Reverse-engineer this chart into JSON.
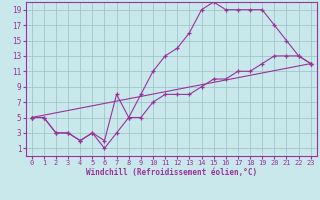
{
  "xlabel": "Windchill (Refroidissement éolien,°C)",
  "line1_x": [
    0,
    1,
    2,
    3,
    4,
    5,
    6,
    7,
    8,
    9,
    10,
    11,
    12,
    13,
    14,
    15,
    16,
    17,
    18,
    19,
    20,
    21,
    22,
    23
  ],
  "line1_y": [
    5,
    5,
    3,
    3,
    2,
    3,
    2,
    8,
    5,
    8,
    11,
    13,
    14,
    16,
    19,
    20,
    19,
    19,
    19,
    19,
    17,
    15,
    13,
    12
  ],
  "line2_x": [
    0,
    1,
    2,
    3,
    4,
    5,
    6,
    7,
    8,
    9,
    10,
    11,
    12,
    13,
    14,
    15,
    16,
    17,
    18,
    19,
    20,
    21,
    22,
    23
  ],
  "line2_y": [
    5,
    5,
    3,
    3,
    2,
    3,
    1,
    3,
    5,
    5,
    7,
    8,
    8,
    8,
    9,
    10,
    10,
    11,
    11,
    12,
    13,
    13,
    13,
    12
  ],
  "line3_x": [
    0,
    23
  ],
  "line3_y": [
    5,
    12
  ],
  "color": "#993399",
  "bg_color": "#c8e8ec",
  "grid_color": "#9bbfc4",
  "xlim": [
    -0.5,
    23.5
  ],
  "ylim": [
    0,
    20
  ],
  "xticks": [
    0,
    1,
    2,
    3,
    4,
    5,
    6,
    7,
    8,
    9,
    10,
    11,
    12,
    13,
    14,
    15,
    16,
    17,
    18,
    19,
    20,
    21,
    22,
    23
  ],
  "yticks": [
    1,
    3,
    5,
    7,
    9,
    11,
    13,
    15,
    17,
    19
  ],
  "tick_fontsize": 5.0,
  "xlabel_fontsize": 5.5
}
